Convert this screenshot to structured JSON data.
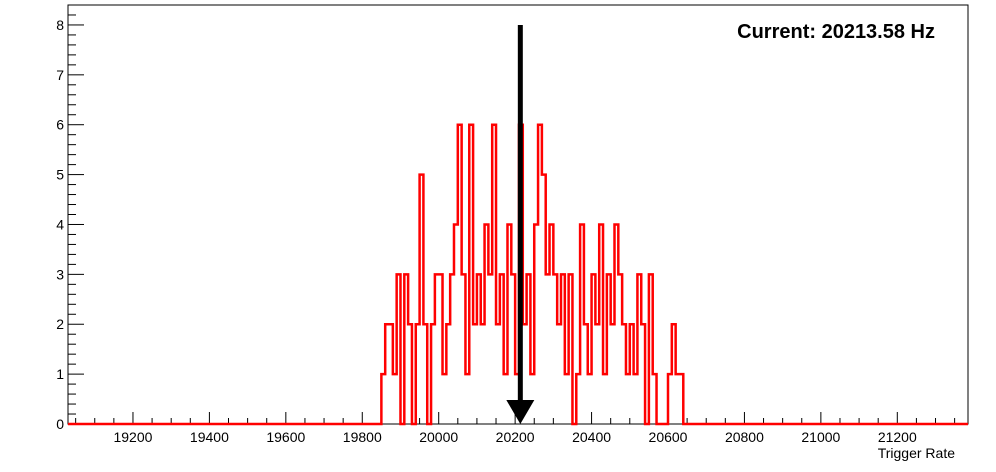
{
  "chart_data": {
    "type": "histogram",
    "title": "",
    "xlabel": "Trigger Rate",
    "ylabel": "",
    "xlim": [
      19030,
      21385
    ],
    "ylim": [
      0,
      8.4
    ],
    "xticks": [
      19200,
      19400,
      19600,
      19800,
      20000,
      20200,
      20400,
      20600,
      20800,
      21000,
      21200
    ],
    "yticks": [
      0,
      1,
      2,
      3,
      4,
      5,
      6,
      7,
      8
    ],
    "grid": false,
    "legend": "none",
    "annotation": "Current: 20213.58 Hz",
    "marker": {
      "x": 20213.58,
      "y_top": 8,
      "y_bottom": 0,
      "color": "#000000"
    },
    "series_color": "#ff0000",
    "bin_width": 10,
    "series": [
      {
        "x": [
          19850,
          19860,
          19870,
          19880,
          19890,
          19900,
          19910,
          19920,
          19930,
          19940,
          19950,
          19960,
          19970,
          19980,
          19990,
          20000,
          20010,
          20020,
          20030,
          20040,
          20050,
          20060,
          20070,
          20080,
          20090,
          20100,
          20110,
          20120,
          20130,
          20140,
          20150,
          20160,
          20170,
          20180,
          20190,
          20200,
          20210,
          20220,
          20230,
          20240,
          20250,
          20260,
          20270,
          20280,
          20290,
          20300,
          20310,
          20320,
          20330,
          20340,
          20350,
          20360,
          20370,
          20380,
          20390,
          20400,
          20410,
          20420,
          20430,
          20440,
          20450,
          20460,
          20470,
          20480,
          20490,
          20500,
          20510,
          20520,
          20530,
          20540,
          20550,
          20560,
          20570,
          20580,
          20590,
          20600,
          20610,
          20620,
          20630
        ],
        "values": [
          1,
          2,
          2,
          1,
          3,
          0,
          3,
          2,
          0,
          2,
          5,
          2,
          0,
          2,
          3,
          3,
          1,
          2,
          3,
          4,
          6,
          3,
          1,
          6,
          2,
          3,
          2,
          4,
          3,
          6,
          2,
          3,
          1,
          4,
          3,
          1,
          6,
          2,
          3,
          1,
          4,
          6,
          5,
          3,
          4,
          3,
          2,
          3,
          1,
          3,
          0,
          1,
          4,
          2,
          1,
          3,
          2,
          4,
          1,
          3,
          2,
          4,
          3,
          2,
          1,
          2,
          1,
          3,
          2,
          0,
          3,
          1,
          0,
          0,
          0,
          1,
          2,
          1,
          1
        ]
      }
    ]
  }
}
